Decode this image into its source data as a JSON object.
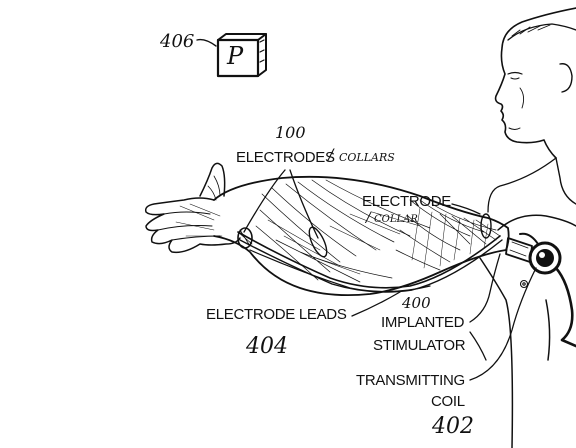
{
  "reference_numerals": {
    "device": "406",
    "electrodes": "100",
    "stimulator": "400",
    "leads": "404",
    "coil": "402"
  },
  "device_label": "P",
  "labels": {
    "electrodes": "ELECTRODES",
    "collars_plural": "COLLARS",
    "electrode": "ELECTRODE",
    "collar": "COLLAR",
    "electrode_leads": "ELECTRODE LEADS",
    "implanted": "IMPLANTED",
    "stimulator": "STIMULATOR",
    "transmitting": "TRANSMITTING",
    "coil": "COIL"
  },
  "separators": {
    "slash": "/"
  }
}
